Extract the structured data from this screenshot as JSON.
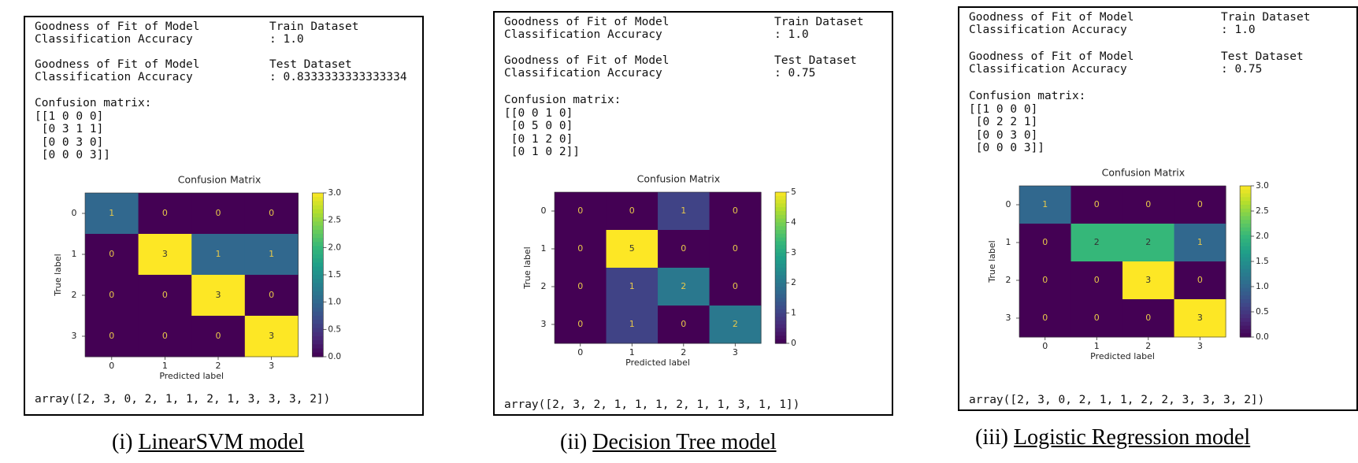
{
  "panels": [
    {
      "fit_label_1": "Goodness of Fit of Model",
      "fit_label_2": "Classification Accuracy",
      "train_dataset": "Train Dataset",
      "train_value": ": 1.0",
      "test_dataset": "Test Dataset",
      "test_value": ": 0.8333333333333334",
      "cm_header": "Confusion matrix:",
      "cm_rows": [
        "[[1 0 0 0]",
        " [0 3 1 1]",
        " [0 0 3 0]",
        " [0 0 0 3]]"
      ],
      "array_text": "array([2, 3, 0, 2, 1, 1, 2, 1, 3, 3, 3, 2])",
      "caption_prefix": "(i) ",
      "caption_name": "LinearSVM model"
    },
    {
      "fit_label_1": "Goodness of Fit of Model",
      "fit_label_2": "Classification Accuracy",
      "train_dataset": "Train Dataset",
      "train_value": ": 1.0",
      "test_dataset": "Test Dataset",
      "test_value": ": 0.75",
      "cm_header": "Confusion matrix:",
      "cm_rows": [
        "[[0 0 1 0]",
        " [0 5 0 0]",
        " [0 1 2 0]",
        " [0 1 0 2]]"
      ],
      "array_text": "array([2, 3, 2, 1, 1, 1, 2, 1, 1, 3, 1, 1])",
      "caption_prefix": "(ii) ",
      "caption_name": "Decision Tree model"
    },
    {
      "fit_label_1": "Goodness of Fit of Model",
      "fit_label_2": "Classification Accuracy",
      "train_dataset": "Train Dataset",
      "train_value": ": 1.0",
      "test_dataset": "Test Dataset",
      "test_value": ": 0.75",
      "cm_header": "Confusion matrix:",
      "cm_rows": [
        "[[1 0 0 0]",
        " [0 2 2 1]",
        " [0 0 3 0]",
        " [0 0 0 3]]"
      ],
      "array_text": "array([2, 3, 0, 2, 1, 1, 2, 2, 3, 3, 3, 2])",
      "caption_prefix": "(iii) ",
      "caption_name": "Logistic Regression model"
    }
  ],
  "chart_data": [
    {
      "type": "heatmap",
      "title": "Confusion Matrix",
      "xlabel": "Predicted label",
      "ylabel": "True label",
      "x_ticks": [
        "0",
        "1",
        "2",
        "3"
      ],
      "y_ticks": [
        "0",
        "1",
        "2",
        "3"
      ],
      "matrix": [
        [
          1,
          0,
          0,
          0
        ],
        [
          0,
          3,
          1,
          1
        ],
        [
          0,
          0,
          3,
          0
        ],
        [
          0,
          0,
          0,
          3
        ]
      ],
      "colorbar": {
        "min": 0.0,
        "max": 3.0,
        "ticks": [
          "0.0",
          "0.5",
          "1.0",
          "1.5",
          "2.0",
          "2.5",
          "3.0"
        ]
      },
      "colormap": "viridis"
    },
    {
      "type": "heatmap",
      "title": "Confusion Matrix",
      "xlabel": "Predicted label",
      "ylabel": "True label",
      "x_ticks": [
        "0",
        "1",
        "2",
        "3"
      ],
      "y_ticks": [
        "0",
        "1",
        "2",
        "3"
      ],
      "matrix": [
        [
          0,
          0,
          1,
          0
        ],
        [
          0,
          5,
          0,
          0
        ],
        [
          0,
          1,
          2,
          0
        ],
        [
          0,
          1,
          0,
          2
        ]
      ],
      "colorbar": {
        "min": 0,
        "max": 5,
        "ticks": [
          "0",
          "1",
          "2",
          "3",
          "4",
          "5"
        ]
      },
      "colormap": "viridis"
    },
    {
      "type": "heatmap",
      "title": "Confusion Matrix",
      "xlabel": "Predicted label",
      "ylabel": "True label",
      "x_ticks": [
        "0",
        "1",
        "2",
        "3"
      ],
      "y_ticks": [
        "0",
        "1",
        "2",
        "3"
      ],
      "matrix": [
        [
          1,
          0,
          0,
          0
        ],
        [
          0,
          2,
          2,
          1
        ],
        [
          0,
          0,
          3,
          0
        ],
        [
          0,
          0,
          0,
          3
        ]
      ],
      "colorbar": {
        "min": 0.0,
        "max": 3.0,
        "ticks": [
          "0.0",
          "0.5",
          "1.0",
          "1.5",
          "2.0",
          "2.5",
          "3.0"
        ]
      },
      "colormap": "viridis"
    }
  ]
}
